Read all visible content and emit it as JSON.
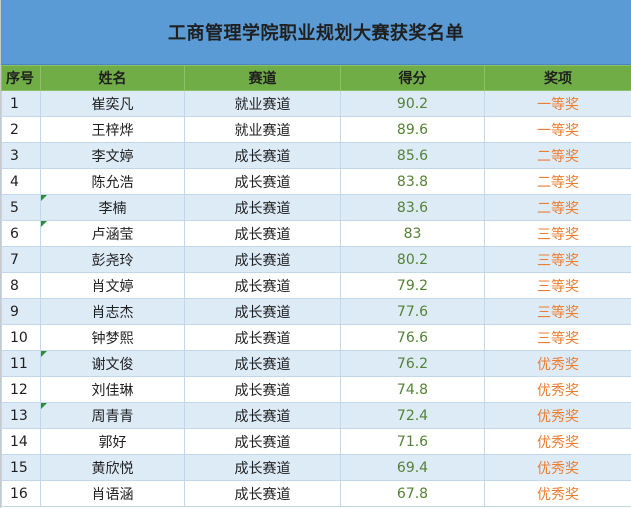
{
  "title": "工商管理学院职业规划大赛获奖名单",
  "columns": [
    "序号",
    "姓名",
    "赛道",
    "得分",
    "奖项"
  ],
  "rows": [
    {
      "seq": "1",
      "name": "崔奕凡",
      "track": "就业赛道",
      "score": "90.2",
      "award": "一等奖",
      "flag": false
    },
    {
      "seq": "2",
      "name": "王梓烨",
      "track": "就业赛道",
      "score": "89.6",
      "award": "一等奖",
      "flag": false
    },
    {
      "seq": "3",
      "name": "李文婷",
      "track": "成长赛道",
      "score": "85.6",
      "award": "二等奖",
      "flag": false
    },
    {
      "seq": "4",
      "name": "陈允浩",
      "track": "成长赛道",
      "score": "83.8",
      "award": "二等奖",
      "flag": false
    },
    {
      "seq": "5",
      "name": "李楠",
      "track": "成长赛道",
      "score": "83.6",
      "award": "二等奖",
      "flag": true
    },
    {
      "seq": "6",
      "name": "卢涵莹",
      "track": "成长赛道",
      "score": "83",
      "award": "三等奖",
      "flag": true
    },
    {
      "seq": "7",
      "name": "彭尧玲",
      "track": "成长赛道",
      "score": "80.2",
      "award": "三等奖",
      "flag": false
    },
    {
      "seq": "8",
      "name": "肖文婷",
      "track": "成长赛道",
      "score": "79.2",
      "award": "三等奖",
      "flag": false
    },
    {
      "seq": "9",
      "name": "肖志杰",
      "track": "成长赛道",
      "score": "77.6",
      "award": "三等奖",
      "flag": false
    },
    {
      "seq": "10",
      "name": "钟梦熙",
      "track": "成长赛道",
      "score": "76.6",
      "award": "三等奖",
      "flag": false
    },
    {
      "seq": "11",
      "name": "谢文俊",
      "track": "成长赛道",
      "score": "76.2",
      "award": "优秀奖",
      "flag": true
    },
    {
      "seq": "12",
      "name": "刘佳琳",
      "track": "成长赛道",
      "score": "74.8",
      "award": "优秀奖",
      "flag": false
    },
    {
      "seq": "13",
      "name": "周青青",
      "track": "成长赛道",
      "score": "72.4",
      "award": "优秀奖",
      "flag": true
    },
    {
      "seq": "14",
      "name": "郭好",
      "track": "成长赛道",
      "score": "71.6",
      "award": "优秀奖",
      "flag": false
    },
    {
      "seq": "15",
      "name": "黄欣悦",
      "track": "成长赛道",
      "score": "69.4",
      "award": "优秀奖",
      "flag": false
    },
    {
      "seq": "16",
      "name": "肖语涵",
      "track": "成长赛道",
      "score": "67.8",
      "award": "优秀奖",
      "flag": false
    }
  ],
  "colors": {
    "title_bg": "#5b9bd5",
    "header_bg": "#70ad47",
    "stripe": "#ddebf7",
    "score_text": "#548235",
    "award_text": "#ed7d31",
    "comment_flag": "#2e8b3a"
  }
}
